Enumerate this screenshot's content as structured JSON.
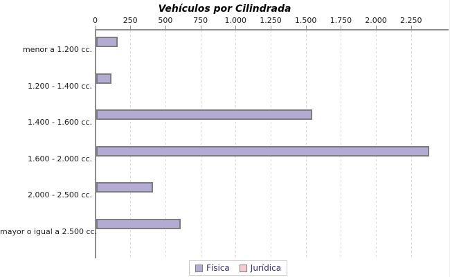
{
  "title": "Vehículos por Cilindrada",
  "chart_data": {
    "type": "bar",
    "orientation": "horizontal",
    "title": "Vehículos por Cilindrada",
    "categories": [
      "menor a 1.200 cc.",
      "1.200 - 1.400 cc.",
      "1.400 - 1.600 cc.",
      "1.600 - 2.000 cc.",
      "2.000 - 2.500 cc.",
      "mayor o igual a 2.500 cc."
    ],
    "series": [
      {
        "name": "Física",
        "values": [
          155,
          110,
          1540,
          2370,
          405,
          600
        ],
        "color": "#b4abd4"
      },
      {
        "name": "Jurídica",
        "values": [
          0,
          0,
          0,
          0,
          0,
          0
        ],
        "color": "#f9caca"
      }
    ],
    "x_ticks": [
      0,
      250,
      500,
      750,
      1000,
      1250,
      1500,
      1750,
      2000,
      2250
    ],
    "x_tick_labels": [
      "0",
      "250",
      "500",
      "750",
      "1.000",
      "1.250",
      "1.500",
      "1.750",
      "2.000",
      "2.250"
    ],
    "xlim": [
      0,
      2520
    ],
    "grid": "vertical-dashed",
    "axis_position": "top",
    "legend_position": "bottom"
  },
  "legend": {
    "items": [
      {
        "label": "Física",
        "color": "#b4abd4"
      },
      {
        "label": "Jurídica",
        "color": "#f9caca"
      }
    ]
  },
  "colors": {
    "bar_border": "#7d7d7d",
    "axis": "#8c8c8c",
    "gridline": "#dadada",
    "legend_text": "#3b2e83",
    "legend_border": "#c9c9c9",
    "title_text": "#000000"
  }
}
